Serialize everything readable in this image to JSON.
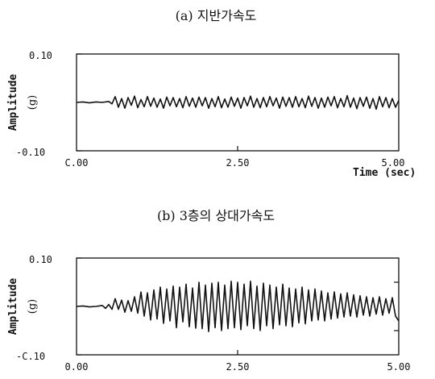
{
  "chart_data": [
    {
      "type": "line",
      "title": "(a) 지반가속도",
      "ylabel": "Amplitude",
      "yunit": "(g)",
      "xunit": "Time (sec)",
      "ylim": [
        -0.1,
        0.1
      ],
      "xlim": [
        0.0,
        5.0
      ],
      "ytick_labels": [
        "0.10",
        "-0.10"
      ],
      "xtick_labels": [
        "0.00",
        "2.50",
        "5.00"
      ],
      "xtick_display": [
        "C.00",
        "2.50",
        "5.00"
      ],
      "series": [
        {
          "x": [
            0.0,
            0.1,
            0.2,
            0.3,
            0.4,
            0.5,
            0.55,
            0.6,
            0.65,
            0.7,
            0.75,
            0.8,
            0.85,
            0.9,
            0.95,
            1.0,
            1.05,
            1.1,
            1.15,
            1.2,
            1.25,
            1.3,
            1.35,
            1.4,
            1.45,
            1.5,
            1.55,
            1.6,
            1.65,
            1.7,
            1.75,
            1.8,
            1.85,
            1.9,
            1.95,
            2.0,
            2.05,
            2.1,
            2.15,
            2.2,
            2.25,
            2.3,
            2.35,
            2.4,
            2.45,
            2.5,
            2.55,
            2.6,
            2.65,
            2.7,
            2.75,
            2.8,
            2.85,
            2.9,
            2.95,
            3.0,
            3.05,
            3.1,
            3.15,
            3.2,
            3.25,
            3.3,
            3.35,
            3.4,
            3.45,
            3.5,
            3.55,
            3.6,
            3.65,
            3.7,
            3.75,
            3.8,
            3.85,
            3.9,
            3.95,
            4.0,
            4.05,
            4.1,
            4.15,
            4.2,
            4.25,
            4.3,
            4.35,
            4.4,
            4.45,
            4.5,
            4.55,
            4.6,
            4.65,
            4.7,
            4.75,
            4.8,
            4.85,
            4.9,
            4.95,
            5.0
          ],
          "y": [
            0.0,
            0.001,
            -0.001,
            0.001,
            0.0,
            0.002,
            -0.003,
            0.012,
            -0.01,
            0.008,
            -0.012,
            0.01,
            -0.006,
            0.013,
            -0.011,
            0.006,
            -0.009,
            0.012,
            -0.008,
            0.009,
            -0.01,
            0.007,
            -0.012,
            0.011,
            -0.007,
            0.01,
            -0.009,
            0.008,
            -0.011,
            0.012,
            -0.008,
            0.009,
            -0.01,
            0.011,
            -0.007,
            0.01,
            -0.012,
            0.008,
            -0.009,
            0.012,
            -0.011,
            0.007,
            -0.01,
            0.011,
            -0.008,
            0.009,
            -0.012,
            0.01,
            -0.007,
            0.013,
            -0.01,
            0.008,
            -0.011,
            0.01,
            -0.009,
            0.012,
            -0.007,
            0.009,
            -0.012,
            0.011,
            -0.008,
            0.01,
            -0.01,
            0.012,
            -0.009,
            0.008,
            -0.011,
            0.013,
            -0.008,
            0.01,
            -0.012,
            0.009,
            -0.01,
            0.011,
            -0.007,
            0.012,
            -0.011,
            0.008,
            -0.009,
            0.014,
            -0.01,
            0.009,
            -0.013,
            0.01,
            -0.008,
            0.011,
            -0.012,
            0.008,
            -0.014,
            0.012,
            -0.009,
            0.01,
            -0.011,
            0.008,
            -0.01,
            0.004
          ]
        }
      ]
    },
    {
      "type": "line",
      "title": "(b) 3층의 상대가속도",
      "ylabel": "Amplitude",
      "yunit": "(g)",
      "xlim": [
        0.0,
        5.0
      ],
      "ylim": [
        -0.1,
        0.1
      ],
      "ytick_labels": [
        "0.10",
        "-0.10"
      ],
      "ytick_display": [
        "0.10",
        "-C.10"
      ],
      "xtick_labels": [
        "0.00",
        "2.50",
        "5.00"
      ],
      "series": [
        {
          "x": [
            0.0,
            0.1,
            0.2,
            0.3,
            0.4,
            0.45,
            0.5,
            0.55,
            0.6,
            0.65,
            0.7,
            0.75,
            0.8,
            0.85,
            0.9,
            0.95,
            1.0,
            1.05,
            1.1,
            1.15,
            1.2,
            1.25,
            1.3,
            1.35,
            1.4,
            1.45,
            1.5,
            1.55,
            1.6,
            1.65,
            1.7,
            1.75,
            1.8,
            1.85,
            1.9,
            1.95,
            2.0,
            2.05,
            2.1,
            2.15,
            2.2,
            2.25,
            2.3,
            2.35,
            2.4,
            2.45,
            2.5,
            2.55,
            2.6,
            2.65,
            2.7,
            2.75,
            2.8,
            2.85,
            2.9,
            2.95,
            3.0,
            3.05,
            3.1,
            3.15,
            3.2,
            3.25,
            3.3,
            3.35,
            3.4,
            3.45,
            3.5,
            3.55,
            3.6,
            3.65,
            3.7,
            3.75,
            3.8,
            3.85,
            3.9,
            3.95,
            4.0,
            4.05,
            4.1,
            4.15,
            4.2,
            4.25,
            4.3,
            4.35,
            4.4,
            4.45,
            4.5,
            4.55,
            4.6,
            4.65,
            4.7,
            4.75,
            4.8,
            4.85,
            4.9,
            4.95,
            5.0
          ],
          "y": [
            0.0,
            0.001,
            -0.001,
            0.0,
            0.002,
            -0.004,
            0.004,
            -0.006,
            0.016,
            -0.006,
            0.013,
            -0.012,
            0.012,
            -0.01,
            0.02,
            -0.014,
            0.03,
            -0.02,
            0.028,
            -0.028,
            0.034,
            -0.026,
            0.04,
            -0.035,
            0.036,
            -0.03,
            0.042,
            -0.044,
            0.04,
            -0.032,
            0.046,
            -0.042,
            0.038,
            -0.045,
            0.05,
            -0.046,
            0.044,
            -0.052,
            0.048,
            -0.044,
            0.05,
            -0.05,
            0.044,
            -0.046,
            0.052,
            -0.044,
            0.05,
            -0.048,
            0.046,
            -0.04,
            0.052,
            -0.046,
            0.042,
            -0.05,
            0.048,
            -0.04,
            0.044,
            -0.046,
            0.04,
            -0.038,
            0.046,
            -0.04,
            0.038,
            -0.042,
            0.036,
            -0.034,
            0.04,
            -0.036,
            0.034,
            -0.03,
            0.036,
            -0.028,
            0.032,
            -0.03,
            0.028,
            -0.026,
            0.03,
            -0.024,
            0.026,
            -0.022,
            0.028,
            -0.02,
            0.024,
            -0.022,
            0.022,
            -0.018,
            0.02,
            -0.02,
            0.018,
            -0.016,
            0.02,
            -0.018,
            0.016,
            -0.014,
            0.018,
            -0.02,
            -0.03
          ]
        }
      ]
    }
  ]
}
